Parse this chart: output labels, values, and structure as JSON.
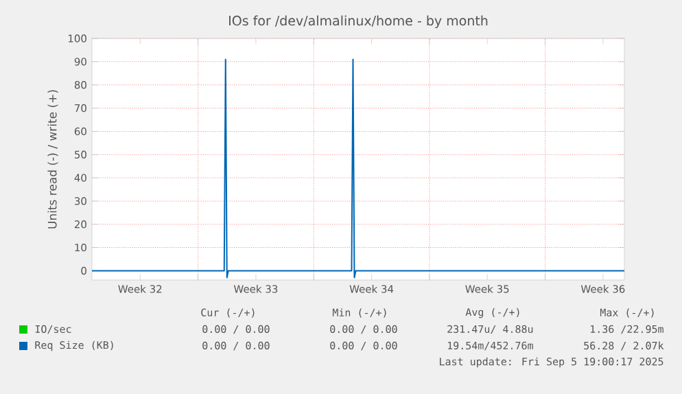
{
  "chart_data": {
    "type": "line",
    "title": "IOs for /dev/almalinux/home - by month",
    "ylabel": "Units read (-) / write (+)",
    "xlim": [
      "2025-08-04T14:00",
      "2025-09-05T19:00"
    ],
    "ylim": [
      -4,
      100
    ],
    "xticks": [
      {
        "value": "2025-08-07T12:00",
        "label": "Week 32"
      },
      {
        "value": "2025-08-14T12:00",
        "label": "Week 33"
      },
      {
        "value": "2025-08-21T12:00",
        "label": "Week 34"
      },
      {
        "value": "2025-08-28T12:00",
        "label": "Week 35"
      },
      {
        "value": "2025-09-04T12:00",
        "label": "Week 36"
      },
      {
        "value": "2025-08-11",
        "label": null
      },
      {
        "value": "2025-08-18",
        "label": null
      },
      {
        "value": "2025-08-25",
        "label": null
      },
      {
        "value": "2025-09-01",
        "label": null
      }
    ],
    "yticks": [
      0,
      10,
      20,
      30,
      40,
      50,
      60,
      70,
      80,
      90,
      100
    ],
    "grid": true,
    "legend": "bottom",
    "marker": "none",
    "series": [
      {
        "name": "IO/sec",
        "color": "#00cc00"
      },
      {
        "name": "Req Size (KB)",
        "color": "#0066b3",
        "x": [
          "2025-08-04T14:00",
          "2025-08-12T14:00",
          "2025-08-12T16:00",
          "2025-08-12T18:00",
          "2025-08-12T20:00",
          "2025-08-20T07:00",
          "2025-08-20T09:00",
          "2025-08-20T11:00",
          "2025-08-20T13:00",
          "2025-09-05T19:00"
        ],
        "values": [
          0,
          0,
          91,
          -3,
          0,
          0,
          91,
          -3,
          0,
          0
        ]
      }
    ],
    "annotations": [
      "Cur (-/+)",
      "Min (-/+)",
      "Avg (-/+)",
      "Max (-/+)",
      "0.00 / 0.00",
      "0.00 / 0.00",
      "231.47u/ 4.88u",
      "1.36 /22.95m",
      "0.00 / 0.00",
      "0.00 / 0.00",
      "19.54m/452.76m",
      "56.28 / 2.07k",
      "Last update: Fri Sep  5 19:00:17 2025"
    ]
  }
}
